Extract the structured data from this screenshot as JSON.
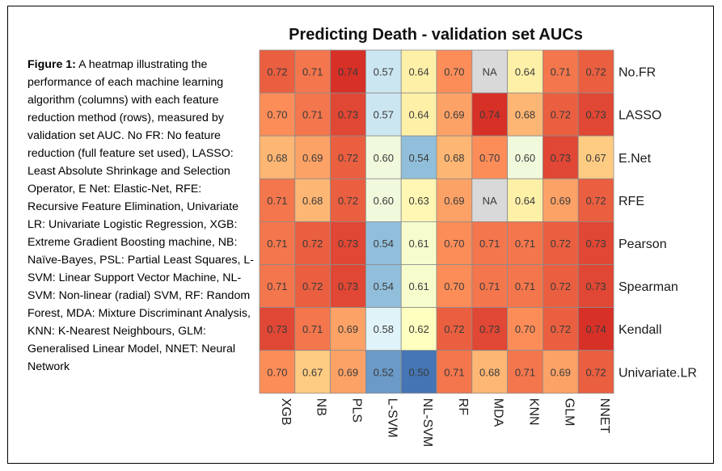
{
  "caption": {
    "label": "Figure 1:",
    "text": " A heatmap illustrating the performance of each machine learning algorithm (columns) with each feature reduction method (rows), measured by validation set AUC. No FR: No feature reduction (full feature set used), LASSO: Least Absolute Shrinkage and Selection Operator, E Net: Elastic-Net, RFE: Recursive Feature Elimination, Univariate LR: Univariate Logistic Regression, XGB: Extreme Gradient Boosting machine, NB: Naïve-Bayes, PSL: Partial Least Squares, L-SVM: Linear Support Vector Machine, NL-SVM: Non-linear (radial) SVM, RF: Random Forest, MDA: Mixture Discriminant Analysis, KNN: K-Nearest Neighbours, GLM: Generalised Linear Model, NNET: Neural Network"
  },
  "chart_data": {
    "type": "heatmap",
    "title": "Predicting Death - validation set AUCs",
    "columns": [
      "XGB",
      "NB",
      "PLS",
      "L-SVM",
      "NL-SVM",
      "RF",
      "MDA",
      "KNN",
      "GLM",
      "NNET"
    ],
    "rows": [
      "No.FR",
      "LASSO",
      "E.Net",
      "RFE",
      "Pearson",
      "Spearman",
      "Kendall",
      "Univariate.LR"
    ],
    "values": [
      [
        0.72,
        0.71,
        0.74,
        0.57,
        0.64,
        0.7,
        null,
        0.64,
        0.71,
        0.72
      ],
      [
        0.7,
        0.71,
        0.73,
        0.57,
        0.64,
        0.69,
        0.74,
        0.68,
        0.72,
        0.73
      ],
      [
        0.68,
        0.69,
        0.72,
        0.6,
        0.54,
        0.68,
        0.7,
        0.6,
        0.73,
        0.67
      ],
      [
        0.71,
        0.68,
        0.72,
        0.6,
        0.63,
        0.69,
        null,
        0.64,
        0.69,
        0.72
      ],
      [
        0.71,
        0.72,
        0.73,
        0.54,
        0.61,
        0.7,
        0.71,
        0.71,
        0.72,
        0.73
      ],
      [
        0.71,
        0.72,
        0.73,
        0.54,
        0.61,
        0.7,
        0.71,
        0.71,
        0.72,
        0.73
      ],
      [
        0.73,
        0.71,
        0.69,
        0.58,
        0.62,
        0.72,
        0.73,
        0.7,
        0.72,
        0.74
      ],
      [
        0.7,
        0.67,
        0.69,
        0.52,
        0.5,
        0.71,
        0.68,
        0.71,
        0.69,
        0.72
      ]
    ],
    "missing_label": "NA",
    "missing_color": "#d9d9d9",
    "color_scale": [
      "#4575b4",
      "#91bfdb",
      "#e0f3f8",
      "#ffffbf",
      "#fee090",
      "#fc8d59",
      "#d73027"
    ],
    "color_domain": [
      0.5,
      0.74
    ]
  }
}
